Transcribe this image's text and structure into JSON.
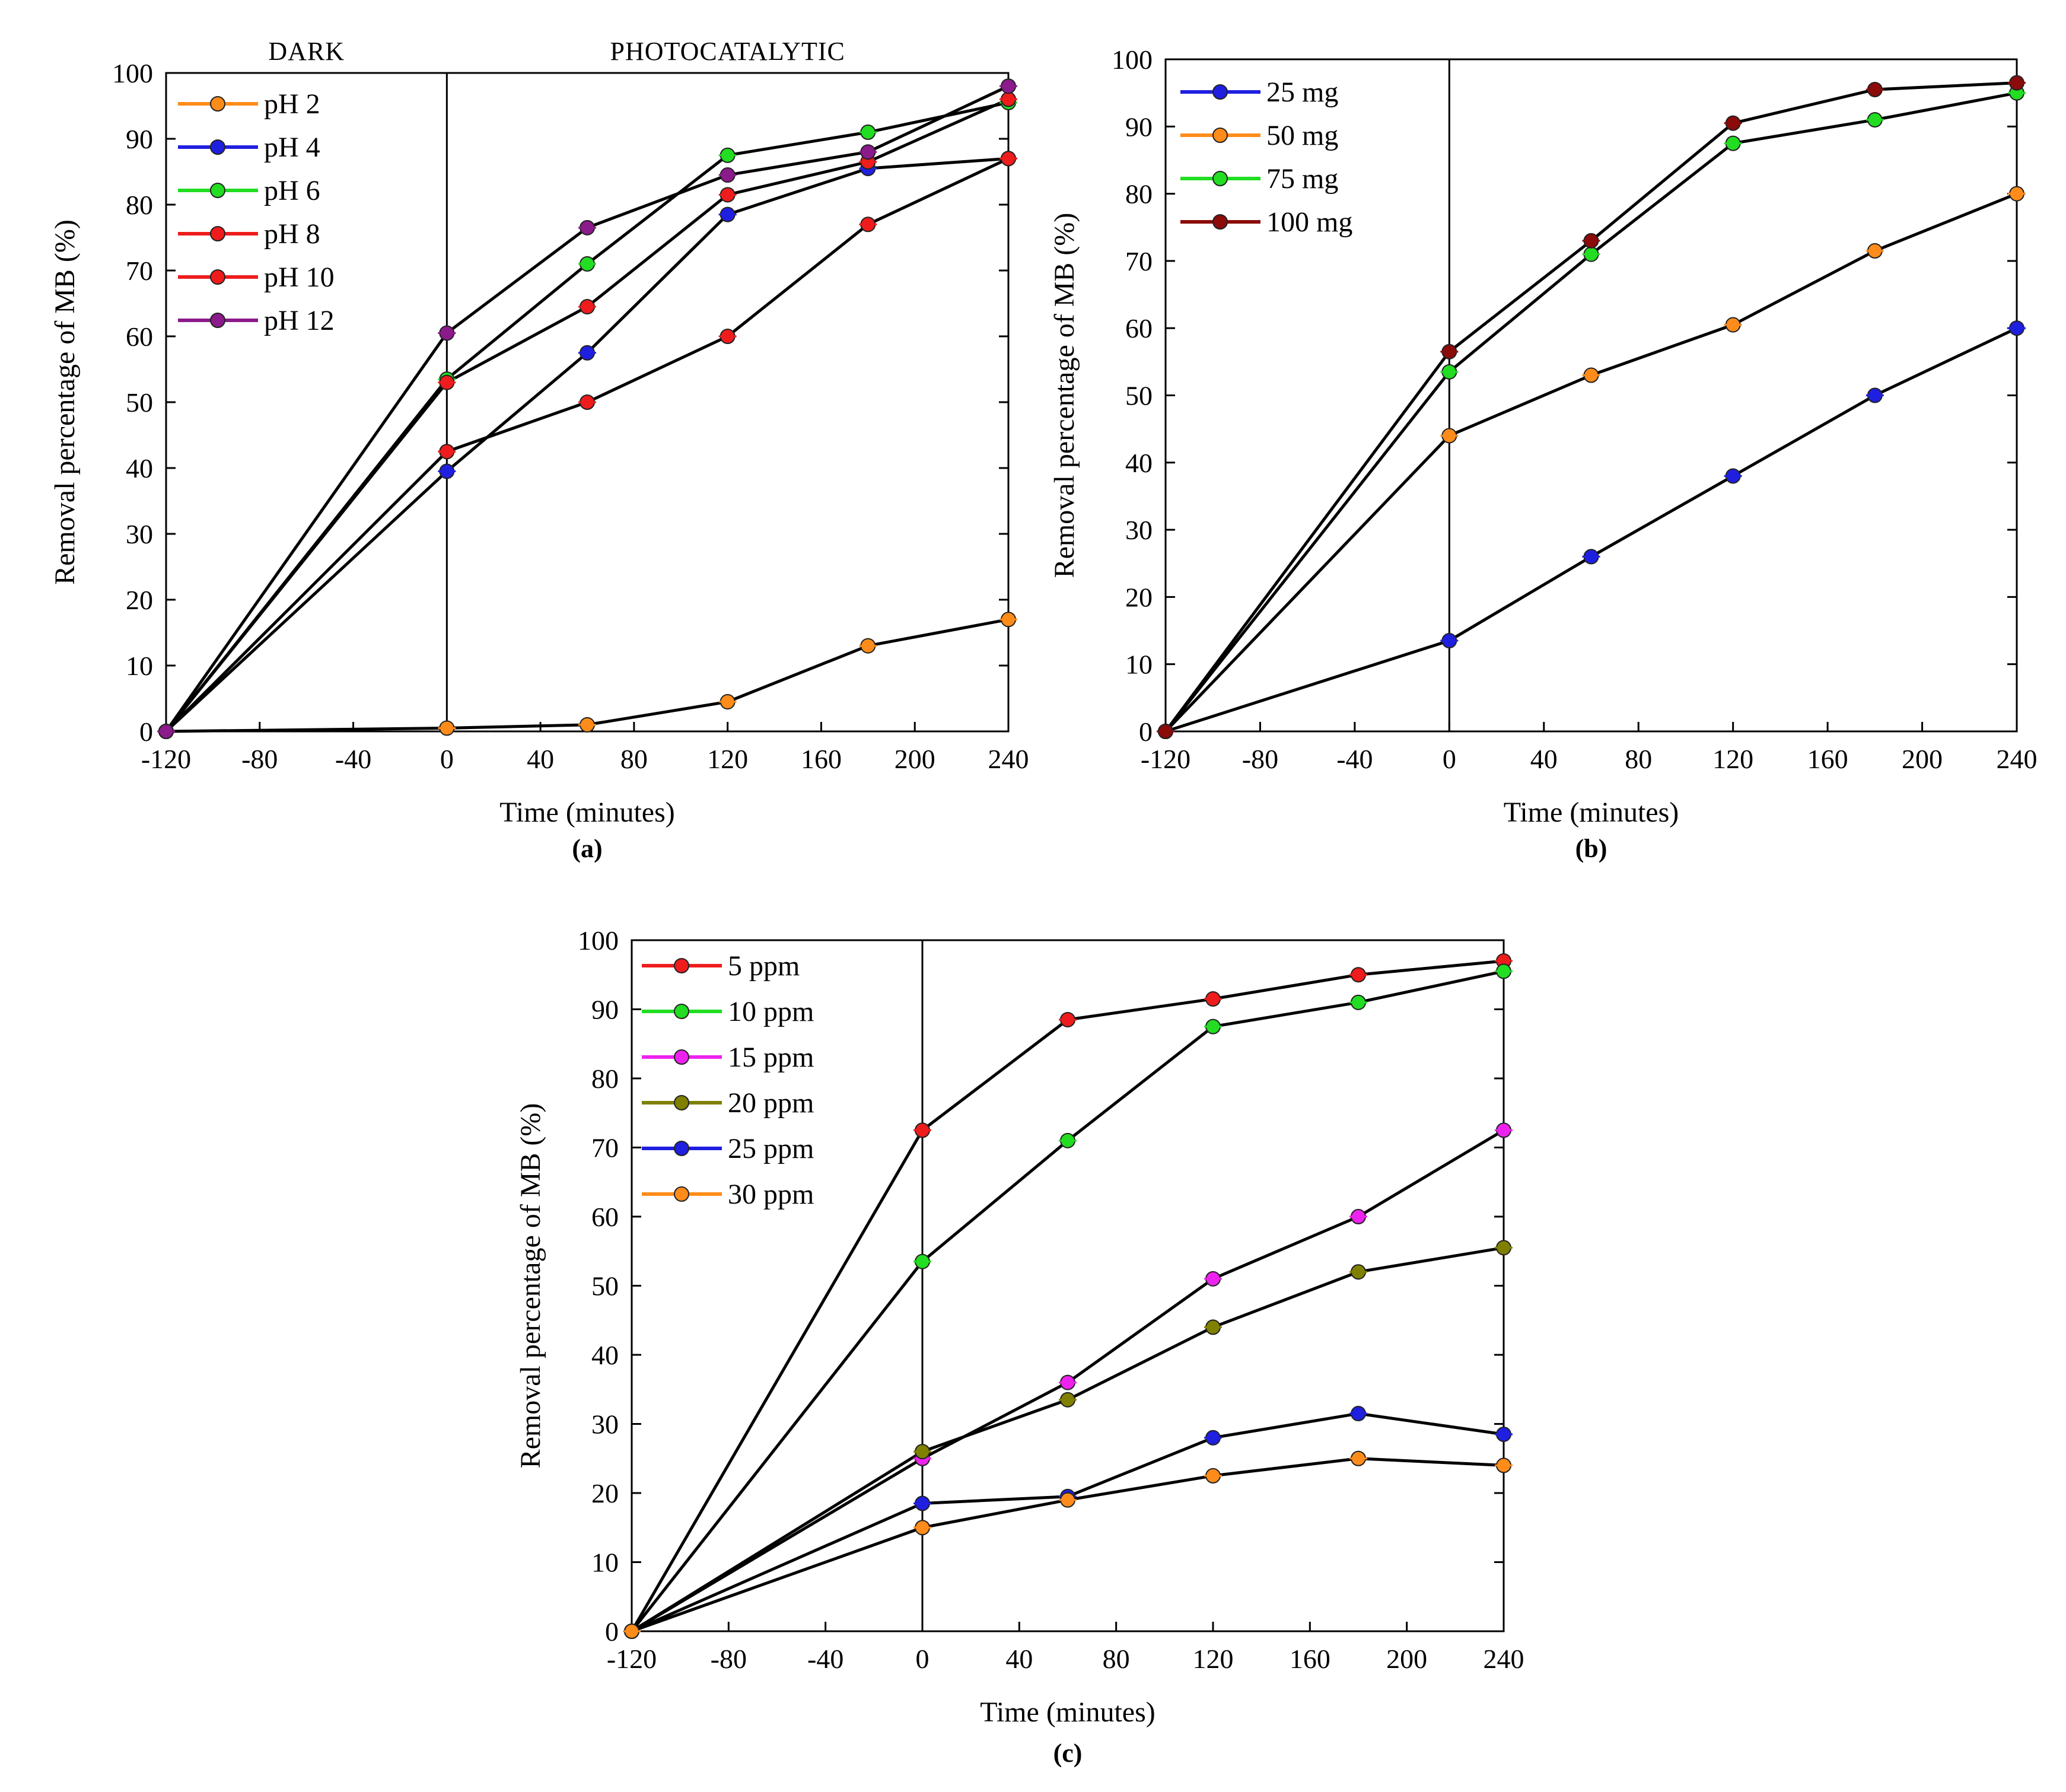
{
  "figure": {
    "description_labels": [
      "(a)",
      "(b)",
      "(c)"
    ]
  },
  "chart_data": [
    {
      "id": "a",
      "type": "line",
      "panel_label": "(a)",
      "xlabel": "Time (minutes)",
      "ylabel": "Removal percentage of MB (%)",
      "xlim": [
        -120,
        240
      ],
      "ylim": [
        0,
        100
      ],
      "xticks": [
        -120,
        -80,
        -40,
        0,
        40,
        80,
        120,
        160,
        200,
        240
      ],
      "yticks": [
        0,
        10,
        20,
        30,
        40,
        50,
        60,
        70,
        80,
        90,
        100
      ],
      "vline_x": 0,
      "region_labels": [
        {
          "text": "DARK",
          "x": -60
        },
        {
          "text": "PHOTOCATALYTIC",
          "x": 120
        }
      ],
      "legend_position": "top-left",
      "x": [
        -120,
        0,
        60,
        120,
        180,
        240
      ],
      "series": [
        {
          "name": "pH 2",
          "color": "#ff8c1a",
          "values": [
            0,
            0.5,
            1,
            4.5,
            13,
            17
          ]
        },
        {
          "name": "pH 4",
          "color": "#1f1fe0",
          "values": [
            0,
            39.5,
            57.5,
            78.5,
            85.5,
            87
          ]
        },
        {
          "name": "pH 6",
          "color": "#22dd22",
          "values": [
            0,
            53.5,
            71,
            87.5,
            91,
            95.5
          ]
        },
        {
          "name": "pH 8",
          "color": "#ee1c1c",
          "values": [
            0,
            53,
            64.5,
            81.5,
            86.5,
            96
          ]
        },
        {
          "name": "pH 10",
          "color": "#ee1c1c",
          "values": [
            0,
            42.5,
            50,
            60,
            77,
            87
          ]
        },
        {
          "name": "pH 12",
          "color": "#8b1a8b",
          "values": [
            0,
            60.5,
            76.5,
            84.5,
            88,
            98
          ]
        }
      ]
    },
    {
      "id": "b",
      "type": "line",
      "panel_label": "(b)",
      "xlabel": "Time (minutes)",
      "ylabel": "Removal percentage of MB (%)",
      "xlim": [
        -120,
        240
      ],
      "ylim": [
        0,
        100
      ],
      "xticks": [
        -120,
        -80,
        -40,
        0,
        40,
        80,
        120,
        160,
        200,
        240
      ],
      "yticks": [
        0,
        10,
        20,
        30,
        40,
        50,
        60,
        70,
        80,
        90,
        100
      ],
      "vline_x": 0,
      "region_labels": [],
      "legend_position": "top-left",
      "x": [
        -120,
        0,
        60,
        120,
        180,
        240
      ],
      "series": [
        {
          "name": "25 mg",
          "color": "#1f1fe0",
          "values": [
            0,
            13.5,
            26,
            38,
            50,
            60
          ]
        },
        {
          "name": "50 mg",
          "color": "#ff8c1a",
          "values": [
            0,
            44,
            53,
            60.5,
            71.5,
            80
          ]
        },
        {
          "name": "75 mg",
          "color": "#22dd22",
          "values": [
            0,
            53.5,
            71,
            87.5,
            91,
            95
          ]
        },
        {
          "name": "100 mg",
          "color": "#8b0a0a",
          "values": [
            0,
            56.5,
            73,
            90.5,
            95.5,
            96.5
          ]
        }
      ]
    },
    {
      "id": "c",
      "type": "line",
      "panel_label": "(c)",
      "xlabel": "Time (minutes)",
      "ylabel": "Removal percentage of MB (%)",
      "xlim": [
        -120,
        240
      ],
      "ylim": [
        0,
        100
      ],
      "xticks": [
        -120,
        -80,
        -40,
        0,
        40,
        80,
        120,
        160,
        200,
        240
      ],
      "yticks": [
        0,
        10,
        20,
        30,
        40,
        50,
        60,
        70,
        80,
        90,
        100
      ],
      "vline_x": 0,
      "region_labels": [],
      "legend_position": "top-left",
      "x": [
        -120,
        0,
        60,
        120,
        180,
        240
      ],
      "series": [
        {
          "name": "5 ppm",
          "color": "#ee1c1c",
          "values": [
            0,
            72.5,
            88.5,
            91.5,
            95,
            97
          ]
        },
        {
          "name": "10 ppm",
          "color": "#22dd22",
          "values": [
            0,
            53.5,
            71,
            87.5,
            91,
            95.5
          ]
        },
        {
          "name": "15 ppm",
          "color": "#ee22ee",
          "values": [
            0,
            25,
            36,
            51,
            60,
            72.5
          ]
        },
        {
          "name": "20 ppm",
          "color": "#808000",
          "values": [
            0,
            26,
            33.5,
            44,
            52,
            55.5
          ]
        },
        {
          "name": "25 ppm",
          "color": "#1f1fe0",
          "values": [
            0,
            18.5,
            19.5,
            28,
            31.5,
            28.5
          ]
        },
        {
          "name": "30 ppm",
          "color": "#ff8c1a",
          "values": [
            0,
            15,
            19,
            22.5,
            25,
            24
          ]
        }
      ]
    }
  ]
}
